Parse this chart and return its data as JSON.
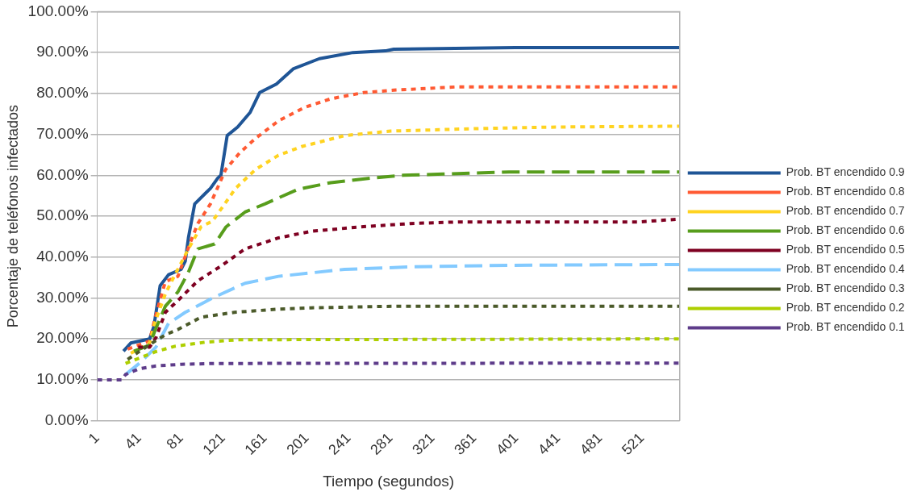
{
  "chart_data": {
    "type": "line",
    "xlabel": "Tiempo (segundos)",
    "ylabel": "Porcentaje de teléfonos infectados",
    "xlim": [
      1,
      557
    ],
    "xticks": [
      1,
      41,
      81,
      121,
      161,
      201,
      241,
      281,
      321,
      361,
      401,
      441,
      481,
      521
    ],
    "ylim": [
      0,
      100
    ],
    "yticks": [
      {
        "value": 0,
        "label": "0.00%"
      },
      {
        "value": 10,
        "label": "10.00%"
      },
      {
        "value": 20,
        "label": "20.00%"
      },
      {
        "value": 30,
        "label": "30.00%"
      },
      {
        "value": 40,
        "label": "40.00%"
      },
      {
        "value": 50,
        "label": "50.00%"
      },
      {
        "value": 60,
        "label": "60.00%"
      },
      {
        "value": 70,
        "label": "70.00%"
      },
      {
        "value": 80,
        "label": "80.00%"
      },
      {
        "value": 90,
        "label": "90.00%"
      },
      {
        "value": 100,
        "label": "100.00%"
      }
    ],
    "grid": "y",
    "legend": "right",
    "marker": "none",
    "series": [
      {
        "name": "Prob. BT encendido 0.9",
        "color": "#1f5596",
        "line_style": "solid",
        "x": [
          26,
          33,
          51,
          55,
          61,
          69,
          81,
          85,
          88,
          94,
          109,
          116,
          119,
          125,
          135,
          147,
          156,
          172,
          188,
          213,
          245,
          276,
          284,
          400,
          557
        ],
        "values": [
          17,
          19,
          20,
          23,
          33,
          35.7,
          37,
          39,
          44.7,
          53,
          56.8,
          59.3,
          60,
          69.7,
          71.8,
          75.4,
          80.2,
          82.3,
          86,
          88.5,
          90,
          90.4,
          90.8,
          91.2,
          91.2
        ]
      },
      {
        "name": "Prob. BT encendido 0.8",
        "color": "#ff5a33",
        "line_style": "dotted",
        "x": [
          30,
          51,
          56,
          66,
          78,
          90.5,
          97,
          109,
          123.5,
          137,
          152,
          174,
          199,
          224,
          255,
          284,
          344,
          557
        ],
        "values": [
          17.5,
          19.5,
          25,
          34,
          35.3,
          44,
          48.2,
          53,
          61.4,
          65.5,
          69,
          73.3,
          76.6,
          78.7,
          80.2,
          80.8,
          81.6,
          81.6
        ]
      },
      {
        "name": "Prob. BT encendido 0.7",
        "color": "#ffd320",
        "line_style": "dotted",
        "x": [
          33,
          51,
          56,
          66,
          71,
          88,
          100,
          111,
          121,
          133,
          152,
          174,
          196,
          237,
          281,
          363,
          441,
          557
        ],
        "values": [
          16.5,
          19,
          24,
          31,
          33.6,
          42,
          47.4,
          48.8,
          52.4,
          56.8,
          61.4,
          64.9,
          67,
          69.7,
          70.8,
          71.4,
          71.8,
          72
        ]
      },
      {
        "name": "Prob. BT encendido 0.6",
        "color": "#579d1c",
        "line_style": "dashed",
        "x": [
          36,
          51,
          56,
          66,
          78,
          88,
          97,
          113,
          124,
          142,
          161,
          193,
          224,
          262,
          293,
          331,
          394,
          557
        ],
        "values": [
          17,
          18.5,
          22,
          28,
          31.5,
          36.3,
          42,
          43.2,
          47.4,
          51,
          53,
          56.6,
          58.2,
          59.3,
          60,
          60.3,
          60.8,
          60.8
        ]
      },
      {
        "name": "Prob. BT encendido 0.5",
        "color": "#7e0021",
        "line_style": "dotted",
        "x": [
          40,
          51,
          57,
          66,
          78,
          97,
          119,
          142,
          174,
          205,
          253,
          300,
          347,
          519,
          557
        ],
        "values": [
          18,
          18,
          20.3,
          26.5,
          29.4,
          34.2,
          37.8,
          42,
          44.7,
          46.3,
          47.4,
          48.2,
          48.6,
          48.6,
          49.3
        ]
      },
      {
        "name": "Prob. BT encendido 0.4",
        "color": "#83caff",
        "line_style": "dashed",
        "x": [
          28,
          41,
          57,
          69,
          85,
          111,
          142,
          174,
          237,
          300,
          394,
          557
        ],
        "values": [
          11.3,
          14,
          18,
          23.8,
          26.5,
          30,
          33.6,
          35.3,
          37,
          37.6,
          38,
          38.2
        ]
      },
      {
        "name": "Prob. BT encendido 0.3",
        "color": "#4b5a2a",
        "line_style": "dotted",
        "x": [
          30,
          41,
          57,
          66,
          78,
          100,
          132,
          175,
          205,
          287,
          557
        ],
        "values": [
          15,
          16.9,
          19.6,
          21,
          22.3,
          25.3,
          26.5,
          27.3,
          27.6,
          28,
          28
        ]
      },
      {
        "name": "Prob. BT encendido 0.2",
        "color": "#aecf00",
        "line_style": "dotted",
        "x": [
          28,
          57,
          75,
          104,
          135,
          557
        ],
        "values": [
          14,
          16.9,
          18.2,
          19.2,
          19.8,
          20
        ]
      },
      {
        "name": "Prob. BT encendido 0.1",
        "color": "#5e3c8a",
        "line_style": "dotted",
        "x": [
          1,
          24.5,
          28,
          41,
          57,
          81,
          113,
          557
        ],
        "values": [
          10,
          10,
          11.3,
          12.7,
          13.4,
          13.8,
          14,
          14.1
        ]
      }
    ]
  }
}
